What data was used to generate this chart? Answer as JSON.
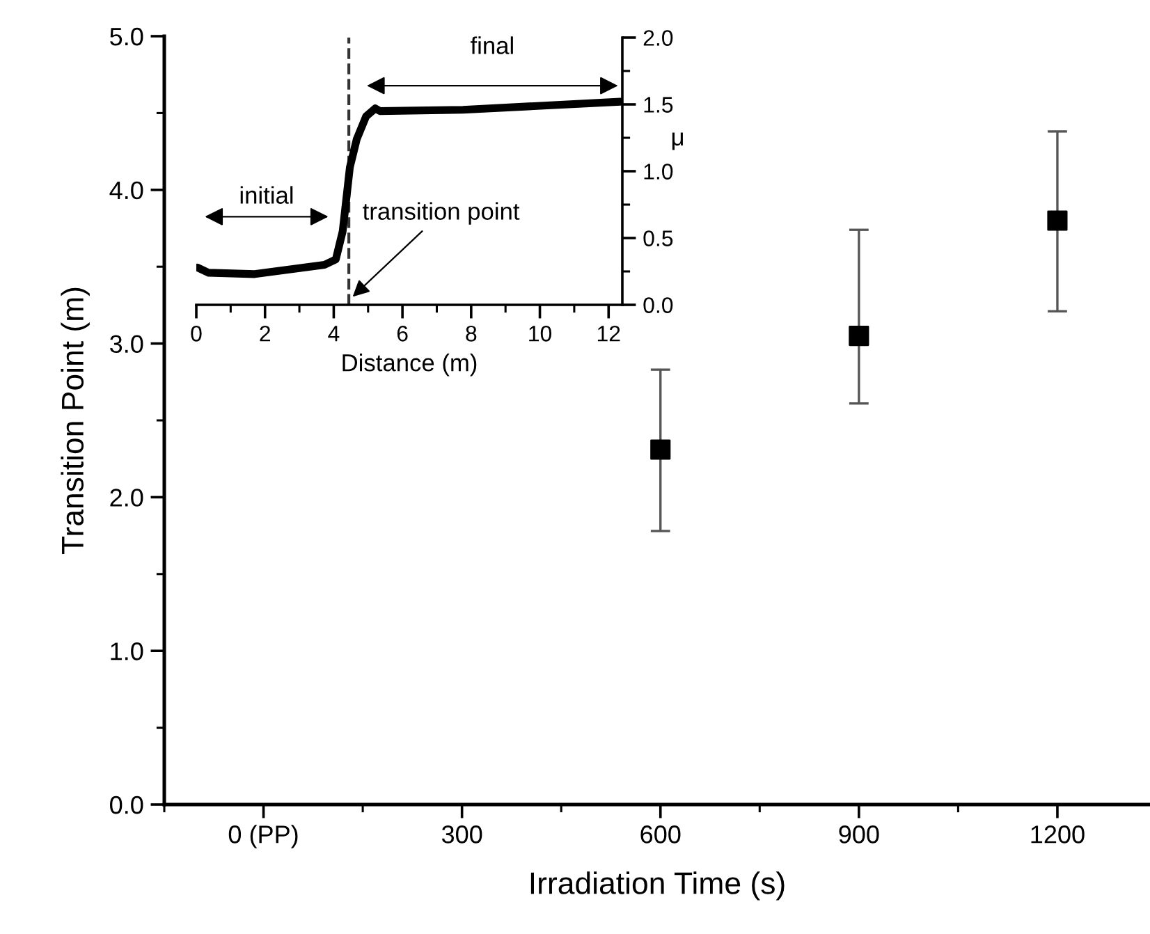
{
  "chart_data": [
    {
      "type": "scatter",
      "xlabel": "Irradiation Time (s)",
      "ylabel": "Transition Point (m)",
      "x": [
        600,
        900,
        1200
      ],
      "values": [
        2.31,
        3.05,
        3.8
      ],
      "errors": [
        [
          1.78,
          2.83
        ],
        [
          2.61,
          3.74
        ],
        [
          3.21,
          4.38
        ]
      ],
      "color": "#000000",
      "marker": "square",
      "grid": false,
      "legend": false,
      "xlim": [
        -150,
        1340
      ],
      "ylim": [
        0,
        5
      ],
      "xticks": [
        {
          "value": -150,
          "label": null
        },
        {
          "value": 0,
          "label": "0 (PP)"
        },
        {
          "value": 150,
          "label": null
        },
        300,
        {
          "value": 450,
          "label": null
        },
        600,
        {
          "value": 750,
          "label": null
        },
        900,
        {
          "value": 1050,
          "label": null
        },
        1200
      ],
      "yticks": [
        {
          "value": 0,
          "label": "0.0"
        },
        {
          "value": 0.5,
          "label": null
        },
        {
          "value": 1,
          "label": "1.0"
        },
        {
          "value": 1.5,
          "label": null
        },
        {
          "value": 2,
          "label": "2.0"
        },
        {
          "value": 2.5,
          "label": null
        },
        {
          "value": 3,
          "label": "3.0"
        },
        {
          "value": 3.5,
          "label": null
        },
        {
          "value": 4,
          "label": "4.0"
        },
        {
          "value": 4.5,
          "label": null
        },
        {
          "value": 5,
          "label": "5.0"
        }
      ]
    },
    {
      "type": "line",
      "xlabel": "Distance (m)",
      "y2label": "μ",
      "color": "#000000",
      "grid": false,
      "legend": false,
      "x": [
        0.03,
        0.36,
        1.7,
        3.73,
        4.06,
        4.26,
        4.47,
        4.67,
        4.94,
        5.21,
        5.34,
        7.76,
        12.34
      ],
      "series": [
        {
          "axis": "y2",
          "color": "#000000",
          "values": [
            0.28,
            0.24,
            0.23,
            0.3,
            0.34,
            0.55,
            1.03,
            1.24,
            1.41,
            1.47,
            1.45,
            1.46,
            1.52
          ]
        }
      ],
      "xlim": [
        0,
        12.4
      ],
      "y2lim": [
        0,
        2
      ],
      "xticks": [
        0,
        {
          "value": 1,
          "label": null
        },
        2,
        {
          "value": 3,
          "label": null
        },
        4,
        {
          "value": 5,
          "label": null
        },
        6,
        {
          "value": 7,
          "label": null
        },
        8,
        {
          "value": 9,
          "label": null
        },
        10,
        {
          "value": 11,
          "label": null
        },
        12
      ],
      "y2ticks": [
        {
          "value": 0,
          "label": "0.0"
        },
        {
          "value": 0.25,
          "label": null
        },
        {
          "value": 0.5,
          "label": "0.5"
        },
        {
          "value": 0.75,
          "label": null
        },
        {
          "value": 1,
          "label": "1.0"
        },
        {
          "value": 1.25,
          "label": null
        },
        {
          "value": 1.5,
          "label": "1.5"
        },
        {
          "value": 1.75,
          "label": null
        },
        {
          "value": 2,
          "label": "2.0"
        }
      ],
      "ref_lines": [
        {
          "axis": "x",
          "value": 4.44,
          "line_style": "dashed",
          "color": "#333333"
        }
      ],
      "annotations": [
        "initial",
        "final",
        {
          "text": "transition point",
          "x": 4.55
        }
      ]
    }
  ]
}
